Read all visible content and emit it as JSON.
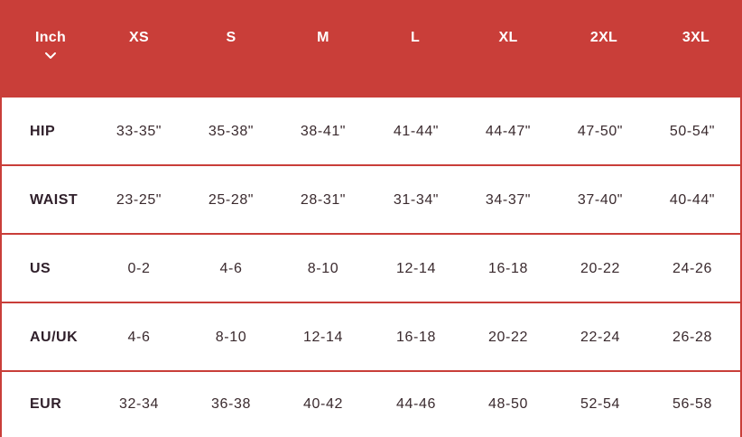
{
  "chart": {
    "unit_selector": {
      "label": "Inch",
      "icon": "chevron-down-icon"
    },
    "sizes": [
      "XS",
      "S",
      "M",
      "L",
      "XL",
      "2XL",
      "3XL"
    ],
    "rows": [
      {
        "label": "HIP",
        "values": [
          "33-35\"",
          "35-38\"",
          "38-41\"",
          "41-44\"",
          "44-47\"",
          "47-50\"",
          "50-54\""
        ]
      },
      {
        "label": "WAIST",
        "values": [
          "23-25\"",
          "25-28\"",
          "28-31\"",
          "31-34\"",
          "34-37\"",
          "37-40\"",
          "40-44\""
        ]
      },
      {
        "label": "US",
        "values": [
          "0-2",
          "4-6",
          "8-10",
          "12-14",
          "16-18",
          "20-22",
          "24-26"
        ]
      },
      {
        "label": "AU/UK",
        "values": [
          "4-6",
          "8-10",
          "12-14",
          "16-18",
          "20-22",
          "22-24",
          "26-28"
        ]
      },
      {
        "label": "EUR",
        "values": [
          "32-34",
          "36-38",
          "40-42",
          "44-46",
          "48-50",
          "52-54",
          "56-58"
        ]
      }
    ]
  },
  "colors": {
    "header_background": "#c93e39",
    "border": "#c93e39",
    "text": "#3a2a2e",
    "header_text": "#ffffff"
  }
}
